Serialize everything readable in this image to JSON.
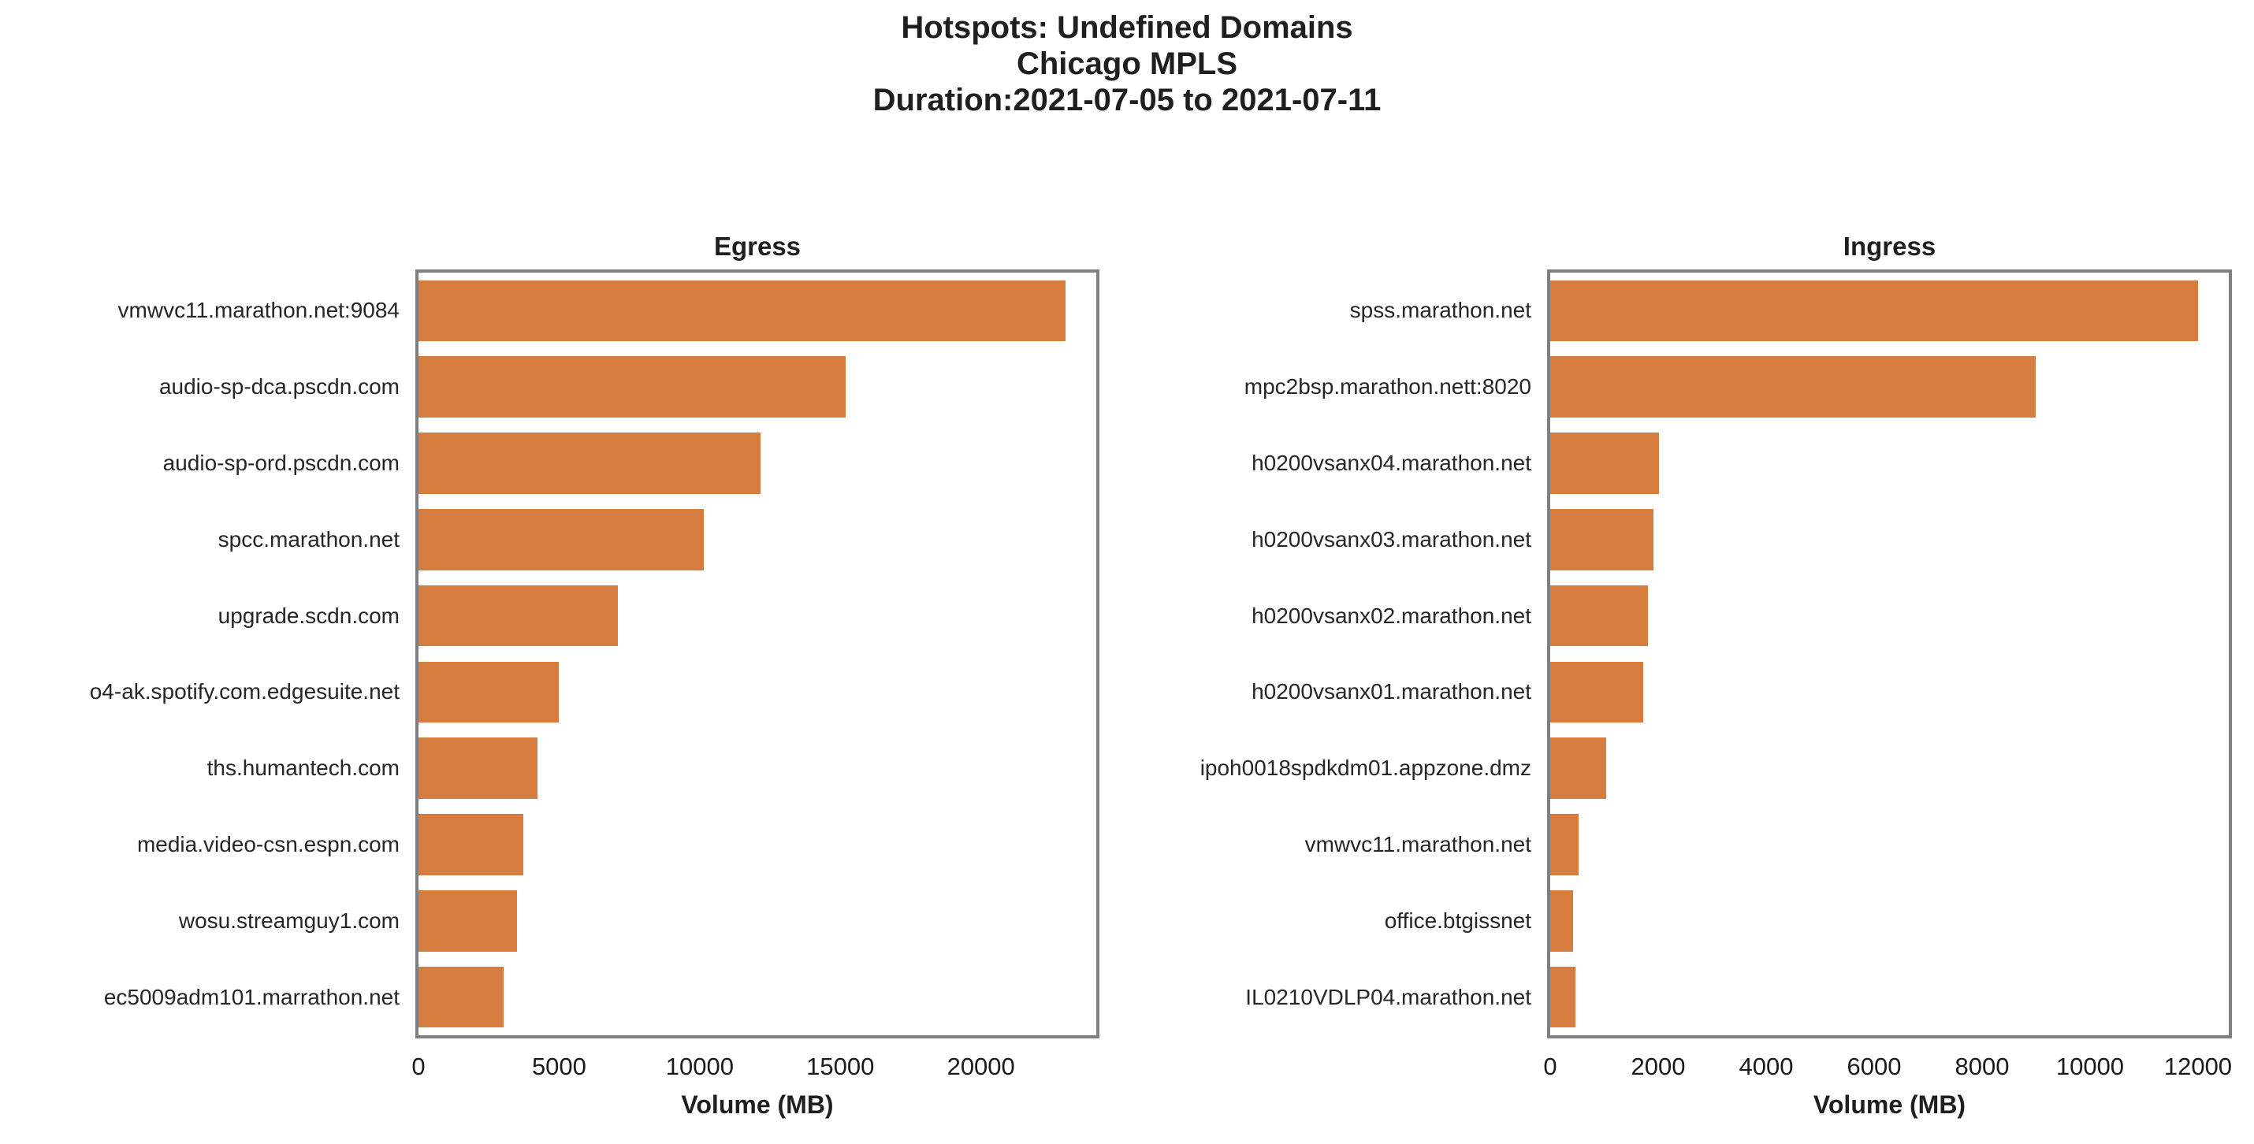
{
  "header": {
    "lines": [
      "Hotspots: Undefined Domains",
      "Chicago MPLS",
      "Duration:2021-07-05 to 2021-07-11"
    ]
  },
  "colors": {
    "bar": "#d67c3e",
    "frame": "#7f7f7f",
    "text": "#1a1a1a"
  },
  "chart_data": [
    {
      "type": "bar",
      "orientation": "horizontal",
      "title": "Egress",
      "xlabel": "Volume (MB)",
      "xlim": [
        0,
        24100
      ],
      "xticks": [
        0,
        5000,
        10000,
        15000,
        20000
      ],
      "grid": false,
      "legend": false,
      "categories": [
        "vmwvc11.marathon.net:9084",
        "audio-sp-dca.pscdn.com",
        "audio-sp-ord.pscdn.com",
        "spcc.marathon.net",
        "upgrade.scdn.com",
        "o4-ak.spotify.com.edgesuite.net",
        "ths.humantech.com",
        "media.video-csn.espn.com",
        "wosu.streamguy1.com",
        "ec5009adm101.marrathon.net"
      ],
      "values": [
        23000,
        15200,
        12150,
        10150,
        7100,
        5000,
        4220,
        3740,
        3500,
        3020
      ]
    },
    {
      "type": "bar",
      "orientation": "horizontal",
      "title": "Ingress",
      "xlabel": "Volume (MB)",
      "xlim": [
        0,
        12570
      ],
      "xticks": [
        0,
        2000,
        4000,
        6000,
        8000,
        10000,
        12000
      ],
      "grid": false,
      "legend": false,
      "categories": [
        "spss.marathon.net",
        "mpc2bsp.marathon.nett:8020",
        "h0200vsanx04.marathon.net",
        "h0200vsanx03.marathon.net",
        "h0200vsanx02.marathon.net",
        "h0200vsanx01.marathon.net",
        "ipoh0018spdkdm01.appzone.dmz",
        "vmwvc11.marathon.net",
        "office.btgissnet",
        "IL0210VDLP04.marathon.net"
      ],
      "values": [
        12000,
        9000,
        2010,
        1910,
        1810,
        1720,
        1030,
        530,
        420,
        460
      ]
    }
  ]
}
